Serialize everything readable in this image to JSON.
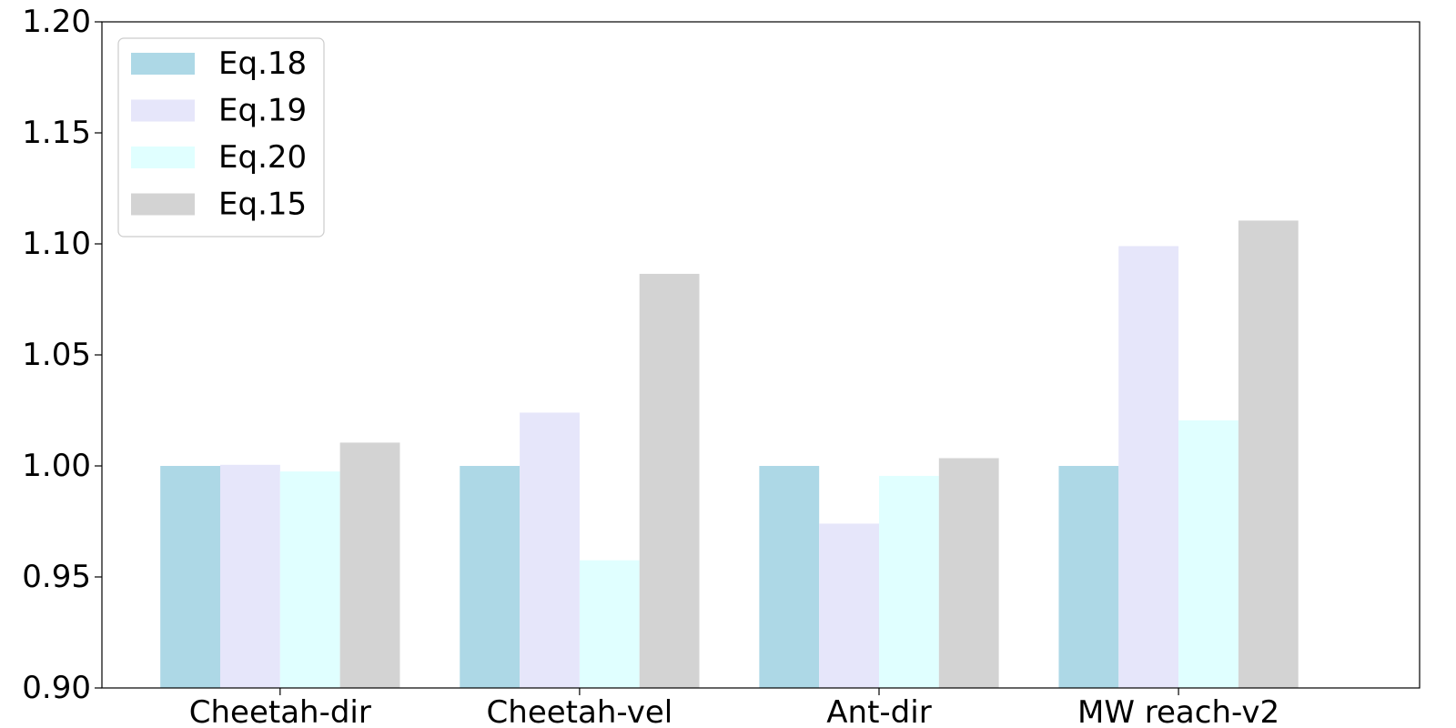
{
  "chart_data": {
    "type": "bar",
    "title": "",
    "xlabel": "",
    "ylabel": "",
    "categories": [
      "Cheetah-dir",
      "Cheetah-vel",
      "Ant-dir",
      "MW reach-v2"
    ],
    "ylim": [
      0.9,
      1.2
    ],
    "yticks": [
      "0.90",
      "0.95",
      "1.00",
      "1.05",
      "1.10",
      "1.15",
      "1.20"
    ],
    "grid": false,
    "legend_position": "top-left",
    "series": [
      {
        "name": "Eq.18",
        "color": "#add8e6",
        "values": [
          1.0,
          1.0,
          1.0,
          1.0
        ]
      },
      {
        "name": "Eq.19",
        "color": "#e6e6fa",
        "values": [
          1.0005,
          1.024,
          0.974,
          1.099
        ]
      },
      {
        "name": "Eq.20",
        "color": "#e0ffff",
        "values": [
          0.9975,
          0.9575,
          0.9955,
          1.0205
        ]
      },
      {
        "name": "Eq.15",
        "color": "#d3d3d3",
        "values": [
          1.0105,
          1.0865,
          1.0035,
          1.1105
        ]
      }
    ]
  }
}
